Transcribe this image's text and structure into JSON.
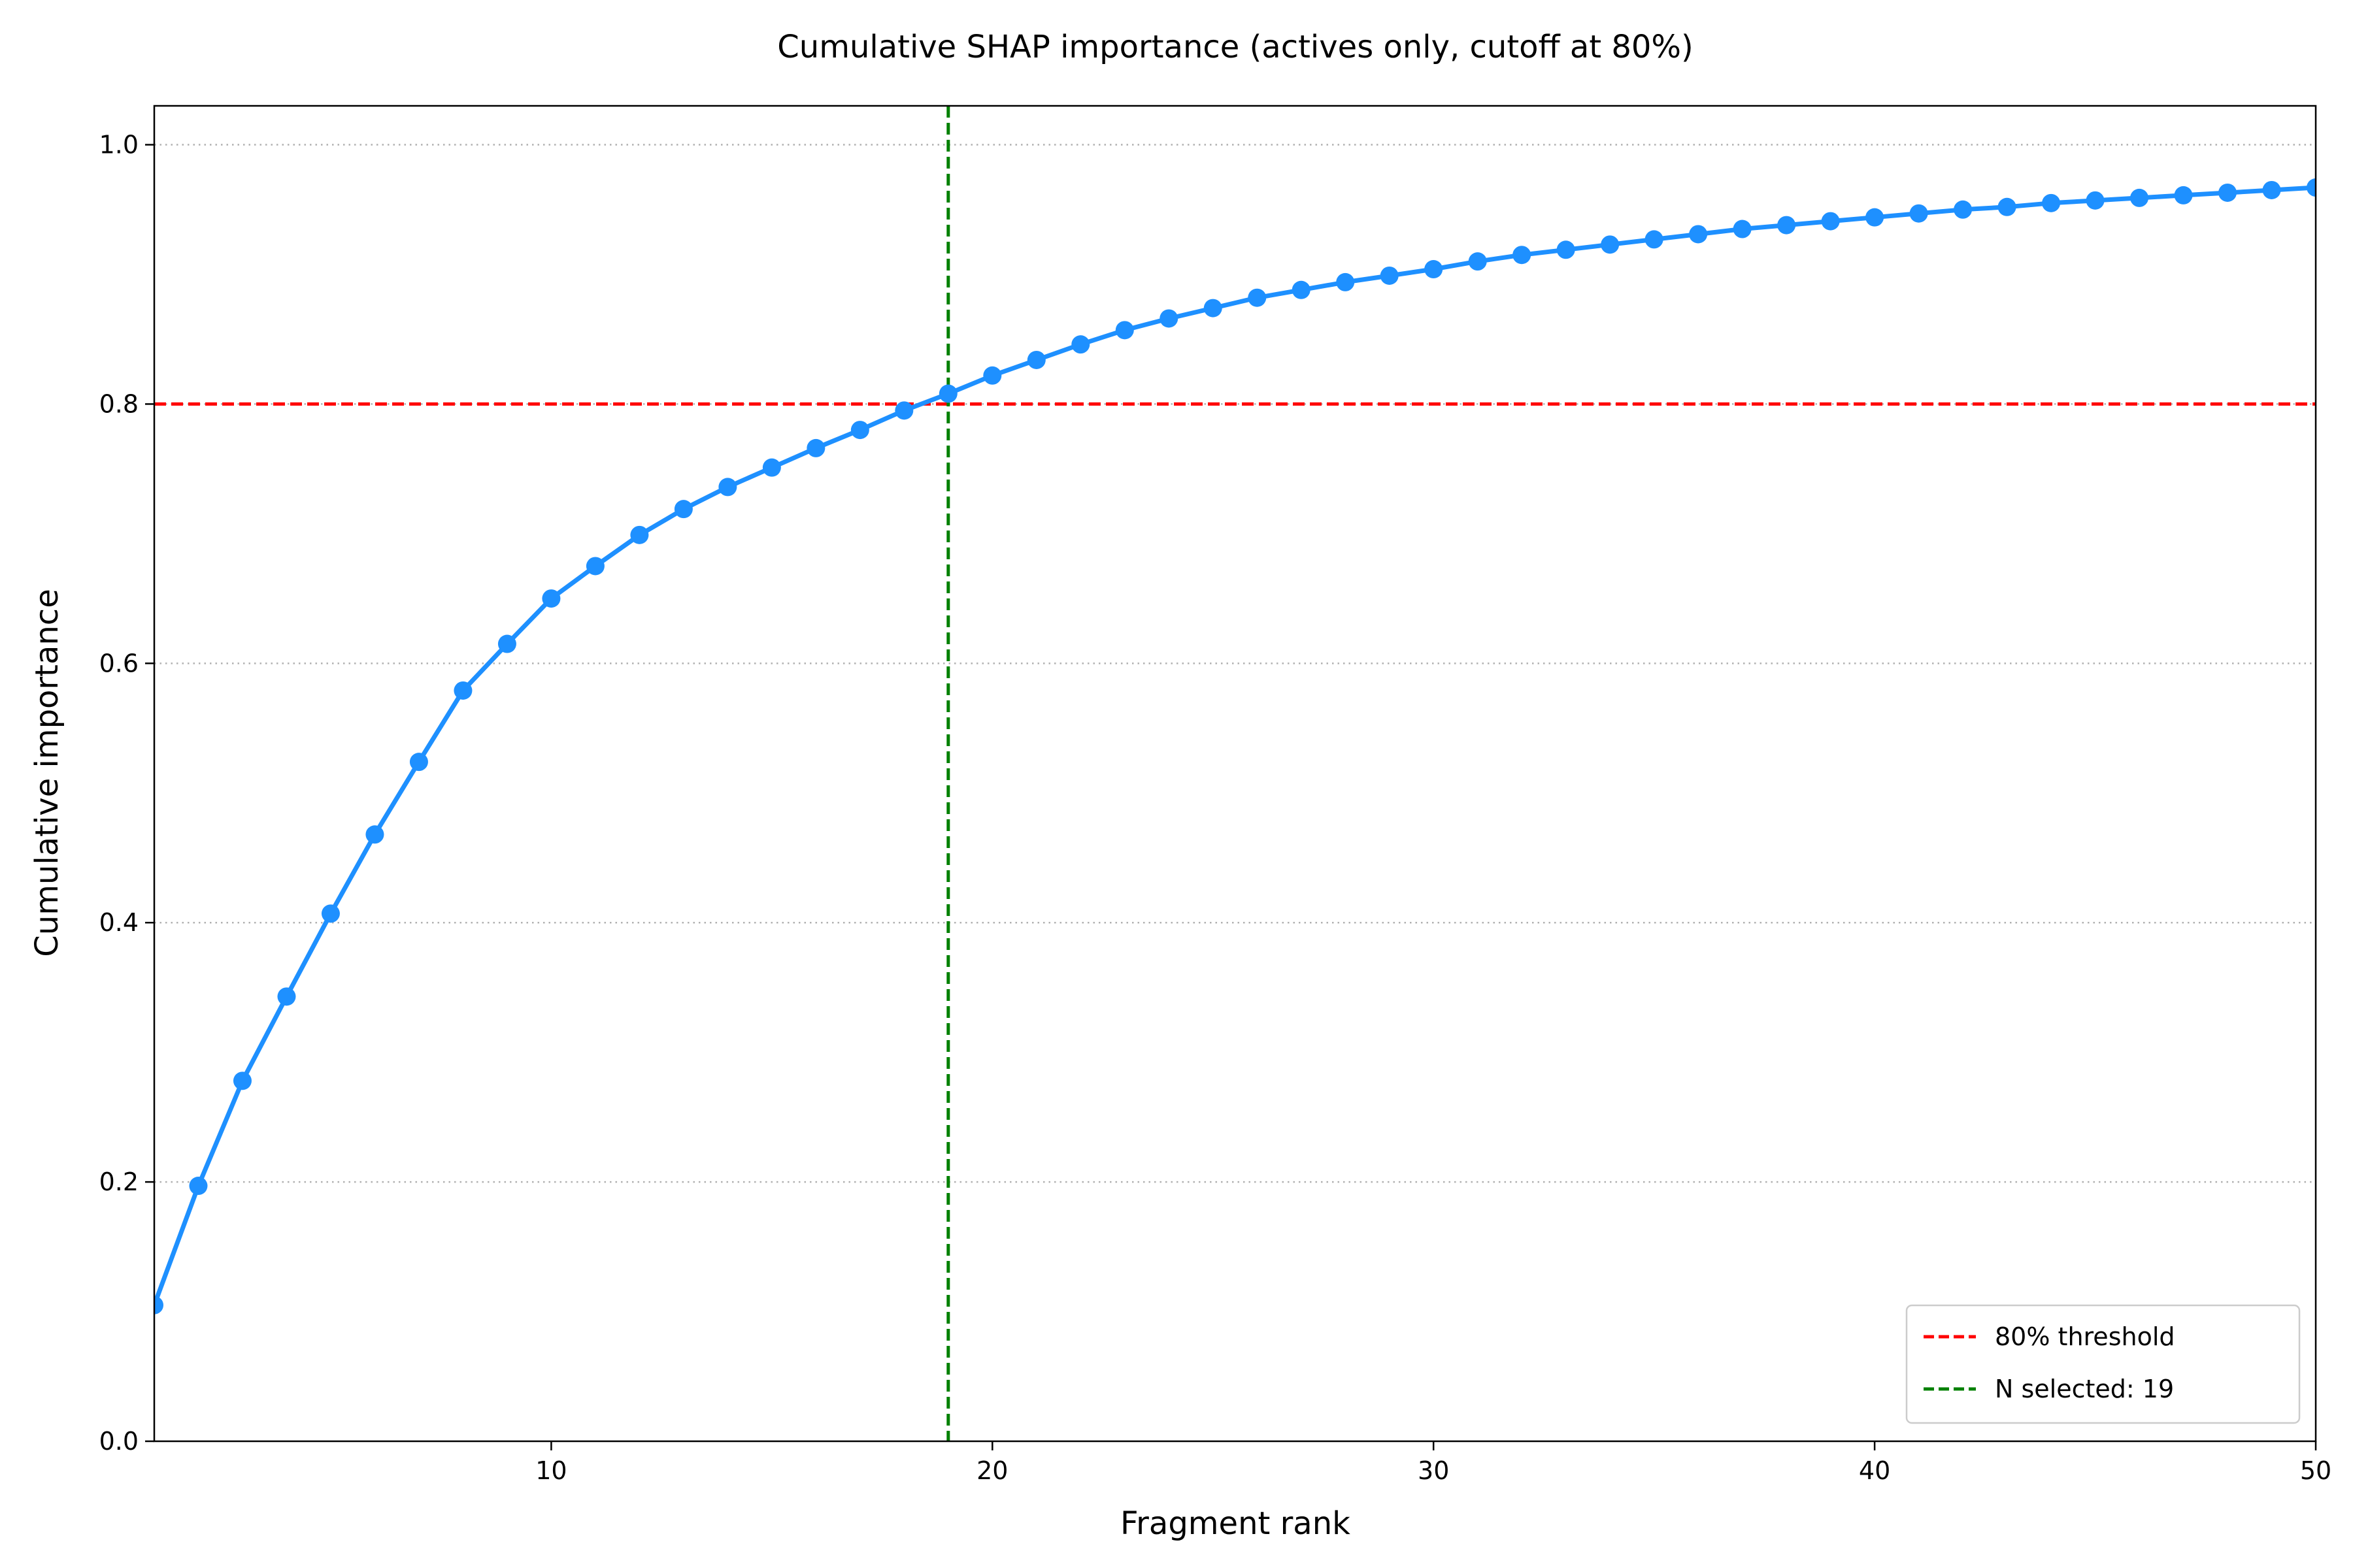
{
  "chart_data": {
    "type": "line",
    "title": "Cumulative SHAP importance (actives only, cutoff at 80%)",
    "xlabel": "Fragment rank",
    "ylabel": "Cumulative importance",
    "xlim": [
      1,
      50
    ],
    "ylim": [
      0,
      1.03
    ],
    "xticks": [
      10,
      20,
      30,
      40,
      50
    ],
    "xtick_labels": [
      "10",
      "20",
      "30",
      "40",
      "50"
    ],
    "yticks": [
      0.0,
      0.2,
      0.4,
      0.6,
      0.8,
      1.0
    ],
    "ytick_labels": [
      "0.0",
      "0.2",
      "0.4",
      "0.6",
      "0.8",
      "1.0"
    ],
    "grid": "horizontal, dotted",
    "legend_position": "lower-right",
    "series": [
      {
        "color": "#1e90ff",
        "marker": "circle",
        "x": [
          1,
          2,
          3,
          4,
          5,
          6,
          7,
          8,
          9,
          10,
          11,
          12,
          13,
          14,
          15,
          16,
          17,
          18,
          19,
          20,
          21,
          22,
          23,
          24,
          25,
          26,
          27,
          28,
          29,
          30,
          31,
          32,
          33,
          34,
          35,
          36,
          37,
          38,
          39,
          40,
          41,
          42,
          43,
          44,
          45,
          46,
          47,
          48,
          49,
          50
        ],
        "values": [
          0.105,
          0.197,
          0.278,
          0.343,
          0.407,
          0.468,
          0.524,
          0.579,
          0.615,
          0.65,
          0.675,
          0.699,
          0.719,
          0.736,
          0.751,
          0.766,
          0.78,
          0.795,
          0.808,
          0.822,
          0.834,
          0.846,
          0.857,
          0.866,
          0.874,
          0.882,
          0.888,
          0.894,
          0.899,
          0.904,
          0.91,
          0.915,
          0.919,
          0.923,
          0.927,
          0.931,
          0.935,
          0.938,
          0.941,
          0.944,
          0.947,
          0.95,
          0.952,
          0.955,
          0.957,
          0.959,
          0.961,
          0.963,
          0.965,
          0.967
        ]
      }
    ],
    "reference_lines": [
      {
        "orientation": "horizontal",
        "value": 0.8,
        "color": "#ff0000",
        "style": "dashed",
        "label": "80% threshold"
      },
      {
        "orientation": "vertical",
        "value": 19,
        "color": "#008000",
        "style": "dashed",
        "label": "N selected: 19"
      }
    ]
  }
}
